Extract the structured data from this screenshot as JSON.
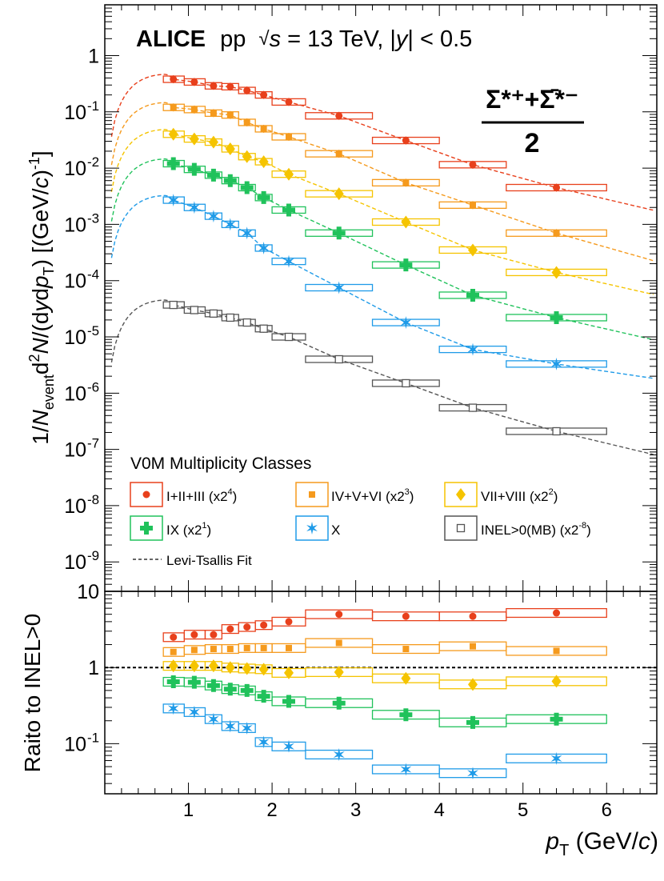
{
  "chart_data": [
    {
      "type": "scatter",
      "panel": "spectra",
      "title": "ALICE pp √s = 13 TeV, |y| < 0.5",
      "title_parts": {
        "experiment": "ALICE",
        "system": "pp",
        "sqrt": "√",
        "s": "s",
        "energy": " = 13 TeV, ",
        "y": "y",
        "rapidity": " < 0.5"
      },
      "particle_label": {
        "numerator": "Σ*⁺+Σ̄*⁻",
        "denominator": "2"
      },
      "ylabel": "1/N_event d²N/(dy dp_T) [(GeV/c)⁻¹]",
      "ylabel_parts": {
        "a": "1/",
        "N": "N",
        "event": "event",
        "d2": "d",
        "sq": "2",
        "N2": "N",
        "open": "/(d",
        "y": "y",
        "d": "d",
        "p": "p",
        "T": "T",
        "close": ")  [(GeV/",
        "c": "c",
        "tail": ")",
        "inv": "-1",
        "end": "]"
      },
      "yscale": "log",
      "ylim": [
        3e-10,
        8
      ],
      "xlim": [
        0,
        6.6
      ],
      "y_tick_labels": [
        "1",
        "10",
        "10",
        "10",
        "10",
        "10",
        "10",
        "10",
        "10",
        "10"
      ],
      "y_tick_exponents": [
        "",
        "-1",
        "-2",
        "-3",
        "-4",
        "-5",
        "-6",
        "-7",
        "-8",
        "-9"
      ],
      "legend_title": "V0M Multiplicity Classes",
      "fit_label": "Levi-Tsallis Fit",
      "bins": [
        [
          0.7,
          0.95
        ],
        [
          0.95,
          1.2
        ],
        [
          1.2,
          1.4
        ],
        [
          1.4,
          1.6
        ],
        [
          1.6,
          1.8
        ],
        [
          1.8,
          2.0
        ],
        [
          2.0,
          2.4
        ],
        [
          2.4,
          3.2
        ],
        [
          3.2,
          4.0
        ],
        [
          4.0,
          4.8
        ],
        [
          4.8,
          6.0
        ]
      ],
      "x": [
        0.82,
        1.07,
        1.3,
        1.5,
        1.7,
        1.9,
        2.2,
        2.8,
        3.6,
        4.4,
        5.4
      ],
      "series": [
        {
          "name": "I+II+III (x2",
          "scale": "4",
          "legend_tail": ")",
          "color": "#e8401c",
          "marker": "circle",
          "values": [
            0.38,
            0.34,
            0.29,
            0.28,
            0.24,
            0.2,
            0.15,
            0.085,
            0.031,
            0.0115,
            0.0045
          ],
          "fit": {
            "A": 0.38,
            "peak": 0.75,
            "slope": 0.33,
            "tail": 0.045
          }
        },
        {
          "name": "IV+V+VI (x2",
          "scale": "3",
          "legend_tail": ")",
          "color": "#f59a1d",
          "marker": "square",
          "values": [
            0.12,
            0.11,
            0.095,
            0.088,
            0.065,
            0.05,
            0.036,
            0.018,
            0.0055,
            0.0022,
            0.0007
          ],
          "fit": {
            "A": 0.125,
            "peak": 0.75,
            "slope": 0.33,
            "tail": 0.09
          }
        },
        {
          "name": "VII+VIII (x2",
          "scale": "2",
          "legend_tail": ")",
          "color": "#f5c400",
          "marker": "diamond",
          "values": [
            0.04,
            0.033,
            0.029,
            0.022,
            0.016,
            0.013,
            0.0078,
            0.0035,
            0.0011,
            0.00035,
            0.00014
          ],
          "fit": {
            "A": 0.042,
            "peak": 0.75,
            "slope": 0.33,
            "tail": 0.14
          }
        },
        {
          "name": "IX (x2",
          "scale": "1",
          "legend_tail": ")",
          "color": "#20c25b",
          "marker": "cross",
          "values": [
            0.012,
            0.0095,
            0.0075,
            0.006,
            0.0045,
            0.003,
            0.0018,
            0.0007,
            0.00019,
            5.5e-05,
            2.2e-05
          ],
          "fit": {
            "A": 0.0125,
            "peak": 0.75,
            "slope": 0.33,
            "tail": 0.17
          }
        },
        {
          "name": "X",
          "scale": "",
          "legend_tail": "",
          "color": "#1f9be8",
          "marker": "star",
          "values": [
            0.0027,
            0.002,
            0.0014,
            0.001,
            0.0007,
            0.00038,
            0.00022,
            7.5e-05,
            1.8e-05,
            6e-06,
            3.3e-06
          ],
          "fit": {
            "A": 0.0028,
            "peak": 0.75,
            "slope": 0.33,
            "tail": 0.25
          }
        },
        {
          "name": "INEL>0(MB) (x2",
          "scale": "-8",
          "legend_tail": ")",
          "color": "#555555",
          "marker": "open-square",
          "values": [
            3.7e-05,
            3e-05,
            2.6e-05,
            2.2e-05,
            1.8e-05,
            1.4e-05,
            1e-05,
            4e-06,
            1.5e-06,
            5.5e-07,
            2.1e-07
          ],
          "fit": {
            "A": 3.8e-05,
            "peak": 0.75,
            "slope": 0.33,
            "tail": 0.08
          }
        }
      ]
    },
    {
      "type": "scatter",
      "panel": "ratio",
      "ylabel": "Raito to INEL>0",
      "xlabel_parts": {
        "p": "p",
        "T": "T",
        "unit": " (GeV/",
        "c": "c",
        "end": ")"
      },
      "yscale": "log",
      "ylim": [
        0.022,
        10
      ],
      "xlim": [
        0,
        6.6
      ],
      "reference_line": 1,
      "x_tick_labels": [
        "1",
        "2",
        "3",
        "4",
        "5",
        "6"
      ],
      "y_tick_labels": [
        "10",
        "1",
        "10"
      ],
      "y_tick_exponents": [
        "",
        "",
        "-1"
      ],
      "series": [
        {
          "name": "I+II+III",
          "values": [
            2.5,
            2.7,
            2.7,
            3.2,
            3.4,
            3.6,
            4.0,
            5.0,
            4.7,
            4.7,
            5.2
          ]
        },
        {
          "name": "IV+V+VI",
          "values": [
            1.6,
            1.7,
            1.75,
            1.75,
            1.8,
            1.8,
            1.8,
            2.1,
            1.75,
            1.9,
            1.65
          ]
        },
        {
          "name": "VII+VIII",
          "values": [
            1.05,
            1.05,
            1.05,
            1.0,
            0.97,
            0.95,
            0.85,
            0.87,
            0.72,
            0.6,
            0.66
          ]
        },
        {
          "name": "IX",
          "values": [
            0.65,
            0.64,
            0.58,
            0.52,
            0.5,
            0.42,
            0.36,
            0.34,
            0.24,
            0.19,
            0.21
          ]
        },
        {
          "name": "X",
          "values": [
            0.29,
            0.26,
            0.21,
            0.17,
            0.16,
            0.105,
            0.092,
            0.072,
            0.046,
            0.041,
            0.064
          ]
        }
      ]
    }
  ]
}
